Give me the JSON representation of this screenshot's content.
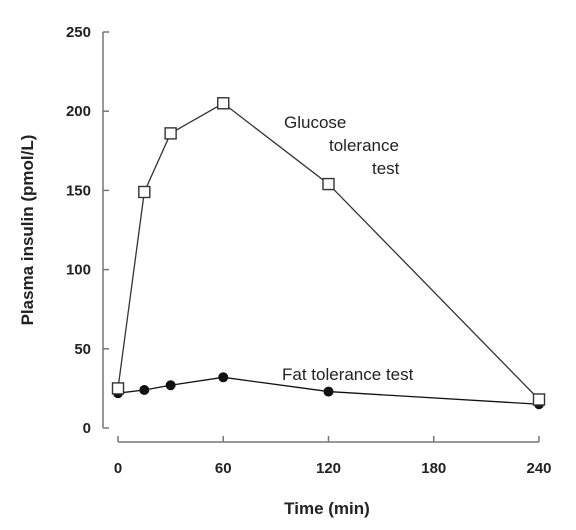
{
  "chart_data": {
    "type": "line",
    "xlabel": "Time (min)",
    "ylabel": "Plasma insulin (pmol/L)",
    "xlim": [
      0,
      240
    ],
    "ylim": [
      0,
      250
    ],
    "xticks": [
      0,
      60,
      120,
      180,
      240
    ],
    "yticks": [
      0,
      50,
      100,
      150,
      200,
      250
    ],
    "grid": false,
    "series": [
      {
        "name": "Glucose tolerance test",
        "marker": "open-square",
        "color": "#333333",
        "x": [
          0,
          15,
          30,
          60,
          120,
          240
        ],
        "y": [
          25,
          149,
          186,
          205,
          154,
          18
        ]
      },
      {
        "name": "Fat tolerance test",
        "marker": "filled-circle",
        "color": "#111111",
        "x": [
          0,
          15,
          30,
          60,
          120,
          240
        ],
        "y": [
          22,
          24,
          27,
          32,
          23,
          15
        ]
      }
    ],
    "annotations": [
      {
        "series": 0,
        "lines": [
          "Glucose",
          "tolerance",
          "test"
        ]
      },
      {
        "series": 1,
        "lines": [
          "Fat tolerance test"
        ]
      }
    ]
  }
}
